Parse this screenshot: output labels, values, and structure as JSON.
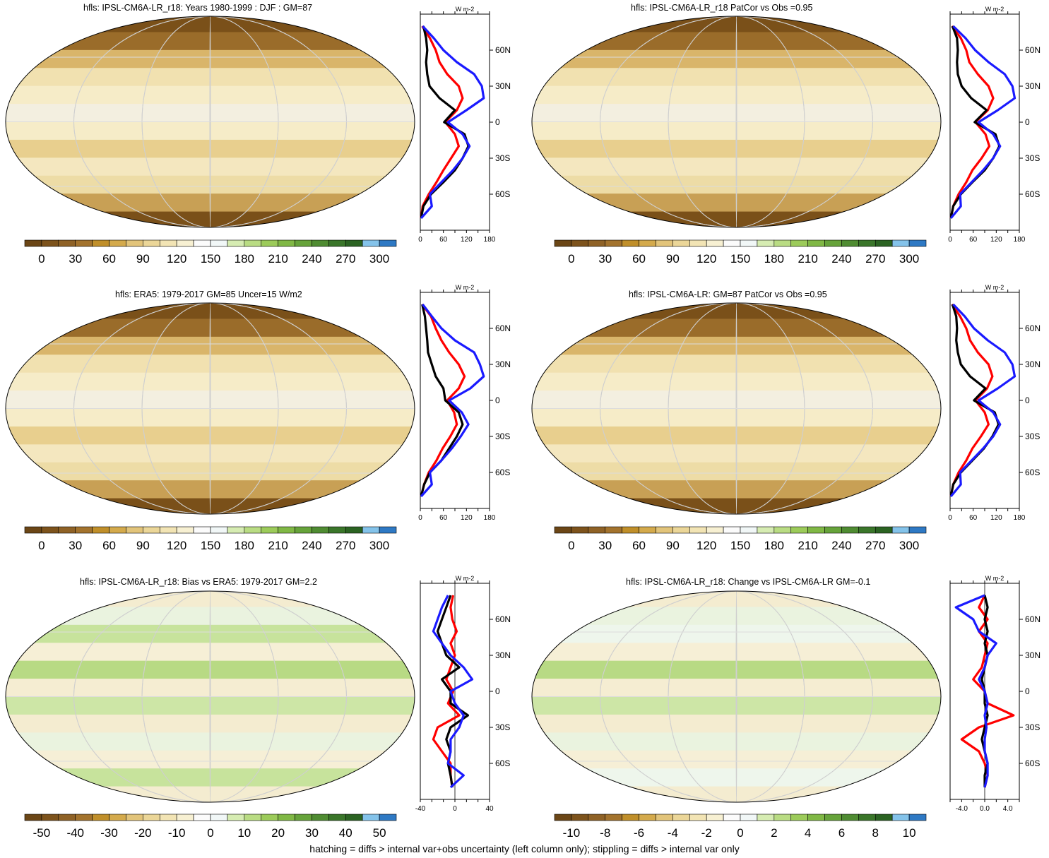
{
  "footer": "hatching = diffs > internal var+obs uncertainty (left column only); stippling = diffs > internal var only",
  "colors": {
    "zonal_model": "#ff0000",
    "zonal_obs": "#1a1aff",
    "zonal_mean": "#000000"
  },
  "palettes": {
    "abs": [
      "#6b4616",
      "#7d531c",
      "#8f6226",
      "#a3732d",
      "#c08f2a",
      "#d4aa4c",
      "#e2c47a",
      "#ebd698",
      "#f2e4b4",
      "#f7f0d2",
      "#fbfbfb",
      "#f1f7f7",
      "#d6ecb2",
      "#b9dc83",
      "#9ccb5a",
      "#80b845",
      "#66a33a",
      "#4f8c32",
      "#3a762a",
      "#2b6322",
      "#84c3ea",
      "#2e79c4"
    ],
    "diff": [
      "#6b4616",
      "#7d531c",
      "#8f6226",
      "#a3732d",
      "#c08f2a",
      "#d4aa4c",
      "#e2c47a",
      "#ebd698",
      "#f2e4b4",
      "#f7f0d2",
      "#fbfbfb",
      "#f1f7f7",
      "#d6ecb2",
      "#b9dc83",
      "#9ccb5a",
      "#80b845",
      "#66a33a",
      "#4f8c32",
      "#3a762a",
      "#2b6322",
      "#84c3ea",
      "#2e79c4"
    ]
  },
  "chart_data": [
    {
      "type": "heatmap",
      "title": "hfls: IPSL-CM6A-LR_r18: Years 1980-1999 : DJF : GM=87",
      "colorbar_ticks": [
        "0",
        "30",
        "60",
        "90",
        "120",
        "150",
        "180",
        "210",
        "240",
        "270",
        "300"
      ],
      "zonal": {
        "unit": "W m-2",
        "xlim": [
          0,
          180
        ],
        "xticks": [
          "0",
          "60",
          "120",
          "180"
        ],
        "ylim": [
          -90,
          90
        ],
        "yticks": [
          "60N",
          "30N",
          "0",
          "30S",
          "60S"
        ],
        "lat": [
          80,
          70,
          60,
          50,
          40,
          30,
          20,
          10,
          0,
          -10,
          -20,
          -30,
          -40,
          -50,
          -60,
          -70,
          -80
        ],
        "series": [
          {
            "values": [
              5,
              25,
              40,
              50,
              70,
              100,
              110,
              95,
              65,
              90,
              100,
              80,
              60,
              42,
              22,
              6,
              2
            ]
          },
          {
            "values": [
              8,
              15,
              18,
              15,
              18,
              24,
              50,
              90,
              62,
              115,
              125,
              110,
              90,
              60,
              28,
              8,
              2
            ]
          },
          {
            "values": [
              6,
              35,
              60,
              95,
              140,
              160,
              165,
              120,
              72,
              110,
              128,
              110,
              85,
              55,
              25,
              30,
              2
            ]
          }
        ]
      }
    },
    {
      "type": "heatmap",
      "title": "hfls: IPSL-CM6A-LR_r18 PatCor vs Obs =0.95",
      "colorbar_ticks": [
        "0",
        "30",
        "60",
        "90",
        "120",
        "150",
        "180",
        "210",
        "240",
        "270",
        "300"
      ],
      "zonal": {
        "unit": "W m-2",
        "xlim": [
          0,
          180
        ],
        "xticks": [
          "0",
          "60",
          "120",
          "180"
        ],
        "ylim": [
          -90,
          90
        ],
        "yticks": [
          "60N",
          "30N",
          "0",
          "30S",
          "60S"
        ],
        "lat": [
          80,
          70,
          60,
          50,
          40,
          30,
          20,
          10,
          0,
          -10,
          -20,
          -30,
          -40,
          -50,
          -60,
          -70,
          -80
        ],
        "series": [
          {
            "values": [
              5,
              28,
              42,
              50,
              72,
              100,
              112,
              98,
              66,
              92,
              102,
              82,
              58,
              42,
              22,
              8,
              2
            ]
          },
          {
            "values": [
              6,
              18,
              20,
              18,
              20,
              30,
              55,
              95,
              64,
              118,
              128,
              112,
              90,
              58,
              28,
              8,
              2
            ]
          },
          {
            "values": [
              8,
              40,
              65,
              100,
              142,
              162,
              168,
              124,
              74,
              112,
              130,
              112,
              86,
              56,
              26,
              28,
              2
            ]
          }
        ]
      }
    },
    {
      "type": "heatmap",
      "title": "hfls: ERA5: 1979-2017 GM=85 Uncer=15 W/m2",
      "colorbar_ticks": [
        "0",
        "30",
        "60",
        "90",
        "120",
        "150",
        "180",
        "210",
        "240",
        "270",
        "300"
      ],
      "zonal": {
        "unit": "W m-2",
        "xlim": [
          0,
          180
        ],
        "xticks": [
          "0",
          "60",
          "120",
          "180"
        ],
        "ylim": [
          -90,
          90
        ],
        "yticks": [
          "60N",
          "30N",
          "0",
          "30S",
          "60S"
        ],
        "lat": [
          80,
          70,
          60,
          50,
          40,
          30,
          20,
          10,
          0,
          -10,
          -20,
          -30,
          -40,
          -50,
          -60,
          -70,
          -80
        ],
        "series": [
          {
            "values": [
              5,
              28,
              40,
              55,
              75,
              100,
              115,
              100,
              70,
              88,
              95,
              78,
              58,
              42,
              22,
              10,
              2
            ]
          },
          {
            "values": [
              5,
              12,
              15,
              18,
              20,
              30,
              40,
              60,
              65,
              100,
              110,
              95,
              75,
              55,
              25,
              10,
              2
            ]
          },
          {
            "values": [
              6,
              30,
              55,
              90,
              140,
              155,
              165,
              130,
              75,
              108,
              125,
              105,
              82,
              55,
              25,
              30,
              2
            ]
          }
        ]
      }
    },
    {
      "type": "heatmap",
      "title": "hfls: IPSL-CM6A-LR: GM=87 PatCor vs Obs =0.95",
      "colorbar_ticks": [
        "0",
        "30",
        "60",
        "90",
        "120",
        "150",
        "180",
        "210",
        "240",
        "270",
        "300"
      ],
      "zonal": {
        "unit": "W m-2",
        "xlim": [
          0,
          180
        ],
        "xticks": [
          "0",
          "60",
          "120",
          "180"
        ],
        "ylim": [
          -90,
          90
        ],
        "yticks": [
          "60N",
          "30N",
          "0",
          "30S",
          "60S"
        ],
        "lat": [
          80,
          70,
          60,
          50,
          40,
          30,
          20,
          10,
          0,
          -10,
          -20,
          -30,
          -40,
          -50,
          -60,
          -70,
          -80
        ],
        "series": [
          {
            "values": [
              5,
              26,
              42,
              52,
              72,
              100,
              110,
              96,
              66,
              90,
              100,
              80,
              58,
              42,
              22,
              8,
              2
            ]
          },
          {
            "values": [
              6,
              16,
              18,
              16,
              20,
              28,
              52,
              92,
              62,
              116,
              126,
              110,
              88,
              58,
              28,
              8,
              2
            ]
          },
          {
            "values": [
              8,
              38,
              62,
              98,
              142,
              162,
              168,
              124,
              74,
              112,
              130,
              112,
              86,
              56,
              26,
              28,
              2
            ]
          }
        ]
      }
    },
    {
      "type": "heatmap",
      "title": "hfls: IPSL-CM6A-LR_r18: Bias vs ERA5: 1979-2017 GM=2.2",
      "colorbar_ticks": [
        "-50",
        "-40",
        "-30",
        "-20",
        "-10",
        "0",
        "10",
        "20",
        "30",
        "40",
        "50"
      ],
      "zonal": {
        "unit": "W m-2",
        "xlim": [
          -40,
          40
        ],
        "xticks": [
          "-40",
          "0",
          "40"
        ],
        "ylim": [
          -90,
          90
        ],
        "yticks": [
          "60N",
          "30N",
          "0",
          "30S",
          "60S"
        ],
        "lat": [
          80,
          70,
          60,
          50,
          40,
          30,
          20,
          10,
          0,
          -10,
          -20,
          -30,
          -40,
          -50,
          -60,
          -70,
          -80
        ],
        "series": [
          {
            "values": [
              -2,
              -5,
              -3,
              2,
              -5,
              0,
              -5,
              -10,
              -2,
              -8,
              5,
              -20,
              -25,
              -15,
              -5,
              -5,
              -3
            ]
          },
          {
            "values": [
              -5,
              -10,
              -15,
              -20,
              -15,
              -10,
              5,
              -15,
              -5,
              -5,
              15,
              -5,
              -10,
              -5,
              -8,
              -5,
              -3
            ]
          },
          {
            "values": [
              -8,
              -15,
              -20,
              -25,
              -15,
              -5,
              10,
              20,
              -5,
              0,
              10,
              5,
              -5,
              -5,
              -8,
              10,
              -5
            ]
          }
        ]
      }
    },
    {
      "type": "heatmap",
      "title": "hfls: IPSL-CM6A-LR_r18: Change vs IPSL-CM6A-LR GM=-0.1",
      "colorbar_ticks": [
        "-10",
        "-8",
        "-6",
        "-4",
        "-2",
        "0",
        "2",
        "4",
        "6",
        "8",
        "10"
      ],
      "zonal": {
        "unit": "W m-2",
        "xlim": [
          -6,
          6
        ],
        "xticks": [
          "-4.0",
          "0.0",
          "4.0"
        ],
        "ylim": [
          -90,
          90
        ],
        "yticks": [
          "60N",
          "30N",
          "0",
          "30S",
          "60S"
        ],
        "lat": [
          80,
          70,
          60,
          50,
          40,
          30,
          20,
          10,
          0,
          -10,
          -20,
          -30,
          -40,
          -50,
          -60,
          -70,
          -80
        ],
        "series": [
          {
            "values": [
              0,
              -1,
              0.5,
              -1,
              0.5,
              0,
              -0.5,
              -2,
              0,
              0.5,
              5,
              -1,
              -4,
              -1,
              0,
              0.5,
              0
            ]
          },
          {
            "values": [
              0,
              0.5,
              0,
              0.5,
              0,
              0.5,
              0,
              -0.5,
              0,
              0,
              0.5,
              0,
              -0.5,
              0,
              0.5,
              0,
              0
            ]
          },
          {
            "values": [
              0,
              -5,
              -2,
              -1,
              2,
              0.5,
              0,
              -1,
              0,
              0.5,
              0,
              0.3,
              0,
              0,
              0.5,
              0.5,
              0
            ]
          }
        ]
      }
    }
  ]
}
